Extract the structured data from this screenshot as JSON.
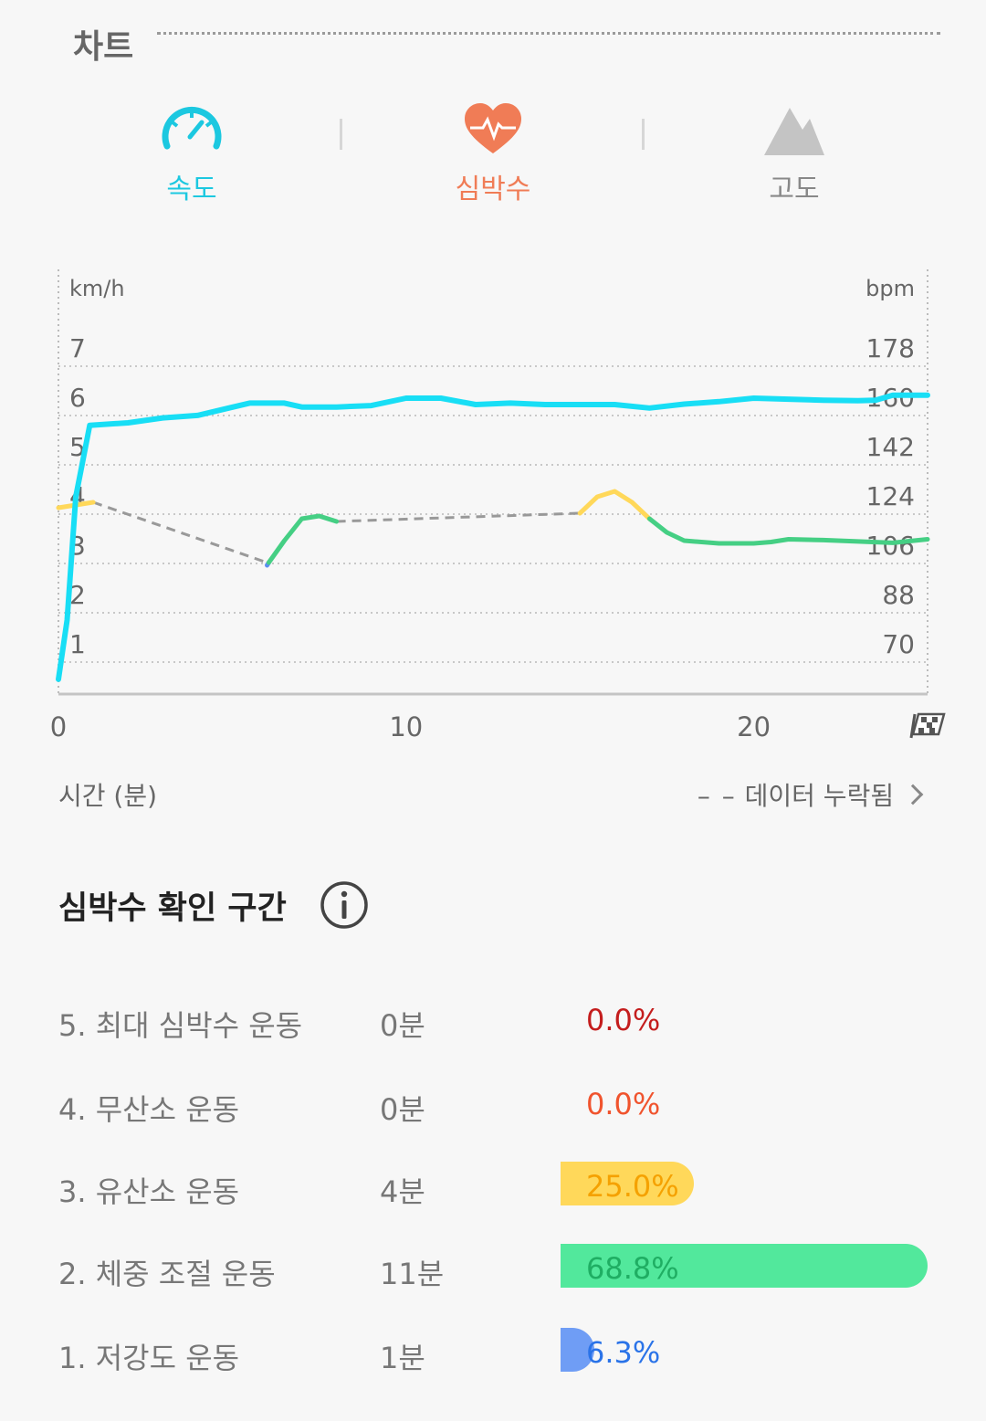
{
  "section": {
    "title": "차트"
  },
  "tabs": [
    {
      "label": "속도",
      "icon": "speedometer-icon",
      "color": "#1cc8e0"
    },
    {
      "label": "심박수",
      "icon": "heart-icon",
      "color": "#f07c56"
    },
    {
      "label": "고도",
      "icon": "mountain-icon",
      "color": "#999999"
    }
  ],
  "chart_data": {
    "type": "line",
    "left_axis_label": "km/h",
    "right_axis_label": "bpm",
    "xlabel": "시간 (분)",
    "left_ticks": [
      "7",
      "6",
      "5",
      "4",
      "3",
      "2",
      "1"
    ],
    "right_ticks": [
      "178",
      "160",
      "142",
      "124",
      "106",
      "88",
      "70"
    ],
    "x_ticks": [
      "0",
      "10",
      "20"
    ],
    "xlim": [
      0,
      25
    ],
    "ylim_left": [
      0,
      7
    ],
    "ylim_right": [
      52,
      178
    ],
    "colors": {
      "speed": "#18def5",
      "gap": "#999999",
      "zone1": "#5b8ef0",
      "zone2": "#45cf84",
      "zone3": "#ffd85a"
    },
    "series": [
      {
        "name": "속도",
        "axis": "left",
        "color": "#18def5",
        "x": [
          0,
          0.25,
          0.5,
          0.9,
          2,
          3,
          4,
          5.5,
          6.5,
          7,
          8,
          9,
          10,
          11,
          12,
          13,
          14,
          15,
          16,
          17,
          18,
          19,
          20,
          21,
          22,
          23,
          23.5,
          24,
          25
        ],
        "y": [
          0.3,
          1.5,
          4.0,
          5.45,
          5.5,
          5.6,
          5.65,
          5.9,
          5.9,
          5.82,
          5.82,
          5.85,
          6.0,
          6.0,
          5.87,
          5.9,
          5.87,
          5.87,
          5.87,
          5.8,
          5.88,
          5.93,
          6.0,
          5.98,
          5.96,
          5.95,
          5.96,
          6.06,
          6.06
        ]
      },
      {
        "name": "심박수",
        "axis": "right",
        "segments": [
          {
            "zone": 3,
            "x": [
              0,
              1
            ],
            "y": [
              120,
              122
            ]
          },
          {
            "zone": 1,
            "x": [
              6.0,
              6.05
            ],
            "y": [
              99,
              100
            ]
          },
          {
            "zone": 2,
            "x": [
              6.05,
              6.5,
              7,
              7.5,
              8
            ],
            "y": [
              100,
              108,
              116,
              117,
              115
            ]
          },
          {
            "zone": 3,
            "x": [
              15,
              15.5,
              16,
              16.5,
              17
            ],
            "y": [
              118,
              124,
              126,
              122,
              116
            ]
          },
          {
            "zone": 2,
            "x": [
              17,
              17.5,
              18,
              19,
              20,
              20.5,
              21,
              22,
              23,
              24,
              25
            ],
            "y": [
              116,
              111,
              108,
              107,
              107,
              107.5,
              108.5,
              108.2,
              107.7,
              107.2,
              108.5
            ]
          }
        ],
        "gaps": [
          {
            "x": [
              1,
              6.0
            ],
            "y": [
              122,
              100
            ]
          },
          {
            "x": [
              8,
              15
            ],
            "y": [
              115,
              118
            ]
          }
        ]
      }
    ]
  },
  "missing_data": {
    "label": "데이터 누락됨"
  },
  "zones": {
    "title": "심박수 확인 구간",
    "rows": [
      {
        "name": "5. 최대 심박수 운동",
        "mins": "0분",
        "pct": "0.0%",
        "value": 0.0,
        "bar_color": "#ffffff",
        "text_color": "#c41d1d"
      },
      {
        "name": "4. 무산소 운동",
        "mins": "0분",
        "pct": "0.0%",
        "value": 0.0,
        "bar_color": "#ffffff",
        "text_color": "#f0542e"
      },
      {
        "name": "3. 유산소 운동",
        "mins": "4분",
        "pct": "25.0%",
        "value": 25.0,
        "bar_color": "#ffd85a",
        "text_color": "#f5a100"
      },
      {
        "name": "2. 체중 조절 운동",
        "mins": "11분",
        "pct": "68.8%",
        "value": 68.8,
        "bar_color": "#52e89c",
        "text_color": "#1fae63"
      },
      {
        "name": "1. 저강도 운동",
        "mins": "1분",
        "pct": "6.3%",
        "value": 6.3,
        "bar_color": "#6f9df5",
        "text_color": "#2a73e8"
      }
    ]
  }
}
